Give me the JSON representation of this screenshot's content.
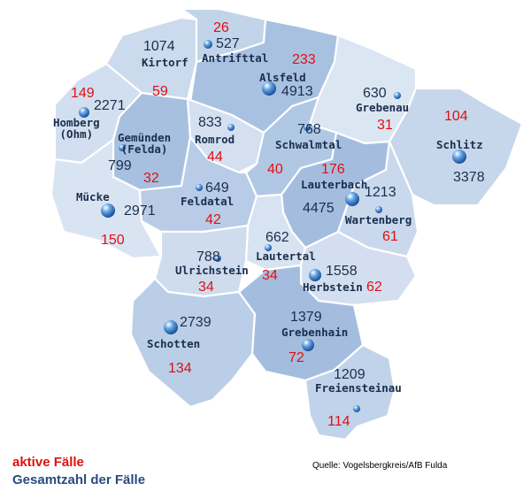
{
  "municipalities": [
    {
      "name": "Antrifttal",
      "total": "527",
      "active": "26"
    },
    {
      "name": "Kirtorf",
      "total": "1074",
      "active": "59"
    },
    {
      "name": "Alsfeld",
      "total": "4913",
      "active": "233"
    },
    {
      "name": "Grebenau",
      "total": "630",
      "active": "31"
    },
    {
      "name": "Homberg\n(Ohm)",
      "total": "2271",
      "active": "149"
    },
    {
      "name": "Schlitz",
      "total": "3378",
      "active": "104"
    },
    {
      "name": "Gemünden\n(Felda)",
      "total": "799",
      "active": "32"
    },
    {
      "name": "Romrod",
      "total": "833",
      "active": "44"
    },
    {
      "name": "Schwalmtal",
      "total": "768",
      "active": "40"
    },
    {
      "name": "Lauterbach",
      "total": "4475",
      "active": "176"
    },
    {
      "name": "Wartenberg",
      "total": "1213",
      "active": "61"
    },
    {
      "name": "Mücke",
      "total": "2971",
      "active": "150"
    },
    {
      "name": "Feldatal",
      "total": "649",
      "active": "42"
    },
    {
      "name": "Lautertal",
      "total": "662",
      "active": "34"
    },
    {
      "name": "Ulrichstein",
      "total": "788",
      "active": "34"
    },
    {
      "name": "Herbstein",
      "total": "1558",
      "active": "62"
    },
    {
      "name": "Schotten",
      "total": "2739",
      "active": "134"
    },
    {
      "name": "Grebenhain",
      "total": "1379",
      "active": "72"
    },
    {
      "name": "Freiensteinau",
      "total": "1209",
      "active": "114"
    }
  ],
  "legend": {
    "active_label": "aktive Fälle",
    "total_label": "Gesamtzahl der Fälle"
  },
  "source": "Quelle: Vogelsbergkreis/AfB Fulda",
  "colors": {
    "active_text": "#e01010",
    "total_text": "#1a2f4d",
    "region_light": "#d6e2f1",
    "region_mid": "#bcd0e8",
    "region_dark": "#a4bddf",
    "border": "#ffffff"
  }
}
